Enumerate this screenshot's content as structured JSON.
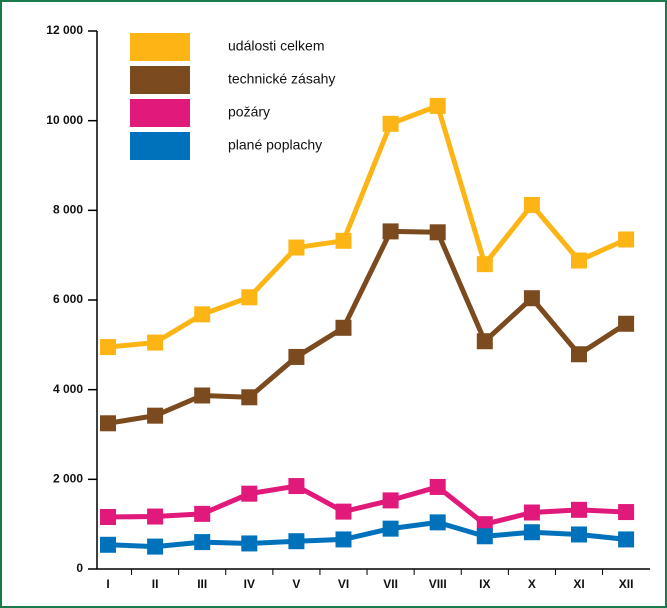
{
  "chart_data": {
    "type": "line",
    "categories": [
      "I",
      "II",
      "III",
      "IV",
      "V",
      "VI",
      "VII",
      "VIII",
      "IX",
      "X",
      "XI",
      "XII"
    ],
    "series": [
      {
        "name": "události celkem",
        "color": "#fdb515",
        "values": [
          4950,
          5050,
          5680,
          6060,
          7170,
          7320,
          9930,
          10330,
          6800,
          8120,
          6880,
          7350
        ]
      },
      {
        "name": "technické zásahy",
        "color": "#7b4a1e",
        "values": [
          3250,
          3420,
          3870,
          3830,
          4730,
          5380,
          7530,
          7510,
          5080,
          6040,
          4790,
          5470
        ]
      },
      {
        "name": "požáry",
        "color": "#e0197a",
        "values": [
          1160,
          1170,
          1230,
          1680,
          1850,
          1280,
          1530,
          1830,
          1000,
          1260,
          1320,
          1270
        ]
      },
      {
        "name": "plané poplachy",
        "color": "#0072bc",
        "values": [
          540,
          500,
          600,
          570,
          620,
          660,
          900,
          1040,
          730,
          820,
          770,
          660
        ]
      }
    ],
    "ylim": [
      0,
      12000
    ],
    "yticks": [
      0,
      {
        "value": 2000,
        "label": "2 000"
      },
      {
        "value": 4000,
        "label": "4 000"
      },
      {
        "value": 6000,
        "label": "6 000"
      },
      {
        "value": 8000,
        "label": "8 000"
      },
      {
        "value": 10000,
        "label": "10 000"
      },
      {
        "value": 12000,
        "label": "12 000"
      }
    ]
  }
}
